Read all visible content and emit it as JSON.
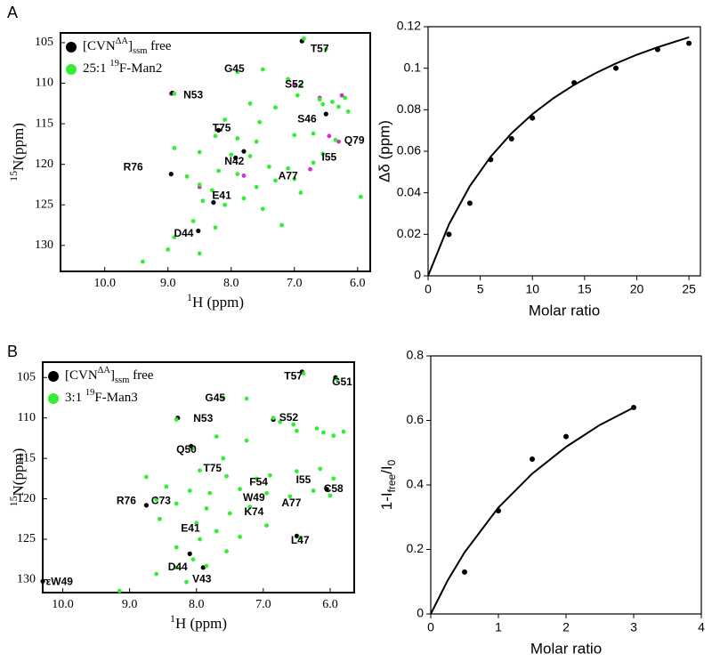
{
  "panel_labels": [
    "A",
    "B"
  ],
  "chart_data": [
    {
      "type": "scatter",
      "y_inverted": true,
      "xlabel": [
        {
          "text": "1",
          "shift": "sup"
        },
        {
          "text": "H (ppm)"
        }
      ],
      "ylabel": [
        {
          "text": "15",
          "shift": "sup"
        },
        {
          "text": "N(ppm)"
        }
      ],
      "xlim": [
        10.7,
        5.8
      ],
      "ylim": [
        103.8,
        133.2
      ],
      "xticks": [
        {
          "value": 10,
          "label": "10.0"
        },
        {
          "value": 9,
          "label": "9.0"
        },
        {
          "value": 8,
          "label": "8.0"
        },
        {
          "value": 7,
          "label": "7.0"
        },
        {
          "value": 6,
          "label": "6.0"
        }
      ],
      "yticks": [
        105,
        110,
        115,
        120,
        125,
        130
      ],
      "series": [
        {
          "color": "#cc33cc",
          "x": [
            8.95,
            6.6,
            6.25,
            6.45,
            6.3,
            7.0,
            8.5,
            7.8,
            6.75
          ],
          "values": [
            111.3,
            111.8,
            111.5,
            116.5,
            117.2,
            110.2,
            122.8,
            121.4,
            120.6
          ]
        },
        {
          "name": [
            {
              "text": "[CVN"
            },
            {
              "text": "ΔA",
              "shift": "sup"
            },
            {
              "text": "]"
            },
            {
              "text": "ssm",
              "shift": "sub"
            },
            {
              "text": " free"
            }
          ],
          "color": "#000000",
          "x": [
            6.88,
            8.93,
            8.2,
            7.93,
            8.95,
            6.5,
            7.8,
            8.28,
            8.52
          ],
          "values": [
            104.8,
            111.2,
            115.8,
            119.2,
            121.2,
            113.8,
            118.4,
            124.7,
            128.2
          ]
        },
        {
          "name": [
            {
              "text": "25:1 "
            },
            {
              "text": "19",
              "shift": "sup"
            },
            {
              "text": "F-Man2"
            }
          ],
          "color": "#33ee33",
          "x": [
            6.85,
            6.5,
            7.9,
            7.5,
            7.1,
            6.9,
            6.95,
            6.6,
            6.55,
            6.4,
            6.3,
            6.2,
            6.15,
            8.9,
            7.7,
            7.3,
            8.1,
            7.55,
            8.25,
            7.9,
            7.6,
            7.0,
            6.7,
            6.35,
            8.9,
            8.5,
            8.0,
            7.7,
            7.4,
            7.1,
            6.7,
            6.55,
            8.2,
            7.9,
            8.7,
            8.5,
            8.3,
            7.6,
            7.3,
            7.0,
            8.45,
            8.1,
            7.8,
            8.6,
            8.25,
            8.9,
            8.5,
            9.0,
            9.4,
            7.2,
            6.9,
            7.5,
            5.95
          ],
          "values": [
            104.5,
            105.8,
            108.6,
            108.3,
            109.5,
            110.3,
            111.5,
            112,
            112.6,
            112.3,
            112.9,
            111.8,
            113.5,
            111.3,
            112.5,
            113,
            114.5,
            114.8,
            116.5,
            116.8,
            117.2,
            116.4,
            116.2,
            117,
            118,
            118.5,
            118.8,
            119,
            120.3,
            120.5,
            119.8,
            118.7,
            120.8,
            121.2,
            121.5,
            122.5,
            123.2,
            122.8,
            122,
            121.8,
            124.5,
            125,
            124.2,
            127,
            127.8,
            129,
            131,
            130.5,
            132,
            127.5,
            123.5,
            125.5,
            124
          ]
        }
      ],
      "annotations": [
        {
          "text": "T57",
          "x": 6.6,
          "y": 105.8
        },
        {
          "text": "G45",
          "x": 7.95,
          "y": 108.3
        },
        {
          "text": "S52",
          "x": 7.0,
          "y": 110.2
        },
        {
          "text": "N53",
          "x": 8.6,
          "y": 111.5
        },
        {
          "text": "S46",
          "x": 6.8,
          "y": 114.5
        },
        {
          "text": "T75",
          "x": 8.15,
          "y": 115.6
        },
        {
          "text": "Q79",
          "x": 6.05,
          "y": 117.1
        },
        {
          "text": "N42",
          "x": 7.95,
          "y": 119.7
        },
        {
          "text": "I55",
          "x": 6.45,
          "y": 119.2
        },
        {
          "text": "R76",
          "x": 9.55,
          "y": 120.4
        },
        {
          "text": "A77",
          "x": 7.1,
          "y": 121.5
        },
        {
          "text": "E41",
          "x": 8.15,
          "y": 123.9
        },
        {
          "text": "D44",
          "x": 8.75,
          "y": 128.6
        }
      ]
    },
    {
      "type": "scatter",
      "xlabel": "Molar ratio",
      "ylabel": "Δδ (ppm)",
      "xlim": [
        0,
        26.1
      ],
      "ylim": [
        0,
        0.12
      ],
      "xticks": [
        0,
        5,
        10,
        15,
        20,
        25
      ],
      "yticks": [
        0,
        0.02,
        0.04,
        0.06,
        0.08,
        0.1,
        0.12
      ],
      "series": [
        {
          "style": "points",
          "color": "#000000",
          "x": [
            2,
            4,
            6,
            8,
            10,
            14,
            18,
            22,
            25
          ],
          "values": [
            0.02,
            0.035,
            0.056,
            0.066,
            0.076,
            0.093,
            0.1,
            0.109,
            0.112
          ]
        },
        {
          "style": "line",
          "color": "#000000",
          "x": [
            0,
            2,
            4,
            6,
            8,
            10,
            12,
            14,
            16,
            18,
            20,
            22,
            25
          ],
          "values": [
            0,
            0.0248,
            0.0432,
            0.0574,
            0.0687,
            0.0779,
            0.0855,
            0.092,
            0.0975,
            0.1023,
            0.1065,
            0.1101,
            0.1149
          ]
        }
      ]
    },
    {
      "type": "scatter",
      "y_inverted": true,
      "xlabel": [
        {
          "text": "1",
          "shift": "sup"
        },
        {
          "text": "H (ppm)"
        }
      ],
      "ylabel": [
        {
          "text": "15",
          "shift": "sup"
        },
        {
          "text": "N(ppm)"
        }
      ],
      "xlim": [
        10.3,
        5.64
      ],
      "ylim": [
        103.1,
        131.6
      ],
      "xticks": [
        {
          "value": 10,
          "label": "10.0"
        },
        {
          "value": 9,
          "label": "9.0"
        },
        {
          "value": 8,
          "label": "8.0"
        },
        {
          "value": 7,
          "label": "7.0"
        },
        {
          "value": 6,
          "label": "6.0"
        }
      ],
      "yticks": [
        105,
        110,
        115,
        120,
        125,
        130
      ],
      "series": [
        {
          "name": [
            {
              "text": "[CVN"
            },
            {
              "text": "ΔA",
              "shift": "sup"
            },
            {
              "text": "]"
            },
            {
              "text": "ssm",
              "shift": "sub"
            },
            {
              "text": " free"
            }
          ],
          "color": "#000000",
          "x": [
            6.42,
            5.92,
            6.85,
            8.28,
            8.08,
            8.75,
            6.5,
            8.1,
            7.9,
            10.3,
            6.05
          ],
          "values": [
            104.3,
            105,
            110.2,
            110,
            113.5,
            120.8,
            124.6,
            126.8,
            128.5,
            130.2,
            118.8
          ]
        },
        {
          "name": [
            {
              "text": "3:1 "
            },
            {
              "text": "19",
              "shift": "sup"
            },
            {
              "text": "F-Man3"
            }
          ],
          "color": "#33ee33",
          "x": [
            6.4,
            5.9,
            7.6,
            7.25,
            6.85,
            6.75,
            6.55,
            6.5,
            6.2,
            6.1,
            5.95,
            5.8,
            8.3,
            7.7,
            7.25,
            8.05,
            7.6,
            7.95,
            7.55,
            7.1,
            6.9,
            6.5,
            6.15,
            5.95,
            8.75,
            8.45,
            8.1,
            7.8,
            7.35,
            6.95,
            6.6,
            6.25,
            6.0,
            8.6,
            8.3,
            7.85,
            7.5,
            7.2,
            8.55,
            8.0,
            7.7,
            7.35,
            7.95,
            8.3,
            6.45,
            8.05,
            8.3,
            7.85,
            8.15,
            8.6,
            9.15,
            7.55,
            6.95
          ],
          "values": [
            104.5,
            105.2,
            107.5,
            107.6,
            110,
            110.5,
            110.8,
            111.6,
            111.3,
            111.8,
            112.2,
            111.7,
            110.2,
            112.3,
            112.8,
            113.7,
            115,
            116.5,
            117.2,
            117.5,
            117.1,
            116.6,
            116.3,
            117.5,
            117.3,
            118.5,
            119,
            119.3,
            118.8,
            119.3,
            119.7,
            119,
            119.6,
            120.1,
            120.6,
            121.2,
            121.8,
            121,
            122.5,
            123,
            124,
            124.7,
            125,
            126,
            124.8,
            127.5,
            128.5,
            128.3,
            130.3,
            129.3,
            131.4,
            126.5,
            123.3
          ]
        }
      ],
      "annotations": [
        {
          "text": "T57",
          "x": 6.55,
          "y": 104.9
        },
        {
          "text": "G51",
          "x": 5.82,
          "y": 105.6
        },
        {
          "text": "G45",
          "x": 7.72,
          "y": 107.6
        },
        {
          "text": "S52",
          "x": 6.62,
          "y": 110.0
        },
        {
          "text": "N53",
          "x": 7.9,
          "y": 110.1
        },
        {
          "text": "Q50",
          "x": 8.15,
          "y": 114.0
        },
        {
          "text": "T75",
          "x": 7.76,
          "y": 116.3
        },
        {
          "text": "F54",
          "x": 7.07,
          "y": 118.0
        },
        {
          "text": "I55",
          "x": 6.4,
          "y": 117.7
        },
        {
          "text": "C58",
          "x": 5.95,
          "y": 118.8
        },
        {
          "text": "W49",
          "x": 7.14,
          "y": 119.9
        },
        {
          "text": "R76",
          "x": 9.05,
          "y": 120.3
        },
        {
          "text": "C73",
          "x": 8.53,
          "y": 120.3
        },
        {
          "text": "K74",
          "x": 7.14,
          "y": 121.7
        },
        {
          "text": "A77",
          "x": 6.58,
          "y": 120.6
        },
        {
          "text": "E41",
          "x": 8.09,
          "y": 123.7
        },
        {
          "text": "L47",
          "x": 6.45,
          "y": 125.2
        },
        {
          "text": "D44",
          "x": 8.28,
          "y": 128.5
        },
        {
          "text": "V43",
          "x": 7.92,
          "y": 130.0
        },
        {
          "text": "εW49",
          "x": 10.05,
          "y": 130.3
        }
      ]
    },
    {
      "type": "scatter",
      "xlabel": "Molar ratio",
      "ylabel": [
        {
          "text": "1-I"
        },
        {
          "text": "free",
          "shift": "sub"
        },
        {
          "text": "/I"
        },
        {
          "text": "0",
          "shift": "sub"
        }
      ],
      "xlim": [
        0,
        4
      ],
      "ylim": [
        0,
        0.8
      ],
      "xticks": [
        0,
        1,
        2,
        3,
        4
      ],
      "yticks": [
        0,
        0.2,
        0.4,
        0.6,
        0.8
      ],
      "series": [
        {
          "style": "points",
          "color": "#000000",
          "x": [
            0.5,
            1,
            1.5,
            2,
            3
          ],
          "values": [
            0.13,
            0.32,
            0.48,
            0.55,
            0.64
          ]
        },
        {
          "style": "line",
          "color": "#000000",
          "x": [
            0,
            0.25,
            0.5,
            1,
            1.5,
            2,
            2.5,
            3
          ],
          "values": [
            0,
            0.104,
            0.191,
            0.33,
            0.435,
            0.518,
            0.586,
            0.64
          ]
        }
      ]
    }
  ]
}
